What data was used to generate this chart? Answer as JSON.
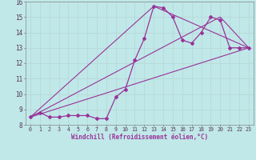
{
  "xlabel": "Windchill (Refroidissement éolien,°C)",
  "background_color": "#c0e8e8",
  "grid_color": "#aacccc",
  "line_color": "#993399",
  "xlim": [
    -0.5,
    23.5
  ],
  "ylim": [
    8,
    16
  ],
  "xticks": [
    0,
    1,
    2,
    3,
    4,
    5,
    6,
    7,
    8,
    9,
    10,
    11,
    12,
    13,
    14,
    15,
    16,
    17,
    18,
    19,
    20,
    21,
    22,
    23
  ],
  "yticks": [
    8,
    9,
    10,
    11,
    12,
    13,
    14,
    15,
    16
  ],
  "curve1_x": [
    0,
    1,
    2,
    3,
    4,
    5,
    6,
    7,
    8,
    9,
    10,
    11,
    12,
    13,
    14,
    15,
    16,
    17,
    18,
    19,
    20,
    21,
    22,
    23
  ],
  "curve1_y": [
    8.5,
    8.8,
    8.5,
    8.5,
    8.6,
    8.6,
    8.6,
    8.4,
    8.4,
    9.8,
    10.3,
    12.2,
    13.6,
    15.7,
    15.6,
    15.0,
    13.5,
    13.3,
    14.0,
    15.0,
    14.8,
    13.0,
    13.0,
    13.0
  ],
  "line1_x": [
    0,
    23
  ],
  "line1_y": [
    8.5,
    13.0
  ],
  "line2_x": [
    0,
    13,
    23
  ],
  "line2_y": [
    8.5,
    15.7,
    13.0
  ],
  "line3_x": [
    0,
    20,
    23
  ],
  "line3_y": [
    8.5,
    15.0,
    13.0
  ]
}
